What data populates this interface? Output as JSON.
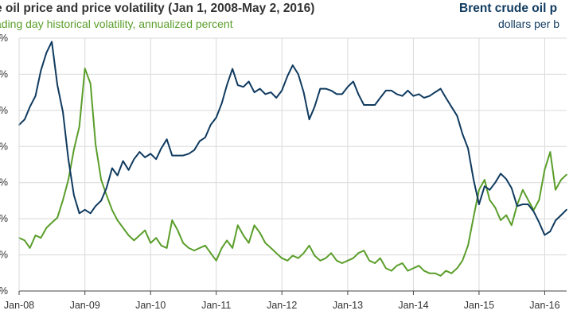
{
  "title": "e oil price and price volatility (Jan 1, 2008-May  2, 2016)",
  "subtitle_left": "ading  day historical volatility, annualized percent",
  "title_right": "Brent crude oil p",
  "subtitle_right": "dollars per b",
  "colors": {
    "volatility": "#5a9e2a",
    "brent": "#0f3a5f",
    "grid": "#d9d9d9",
    "axis": "#444444"
  },
  "chart_data": {
    "type": "line",
    "grid": true,
    "x_tick_labels": [
      "Jan-08",
      "Jan-09",
      "Jan-10",
      "Jan-11",
      "Jan-12",
      "Jan-13",
      "Jan-14",
      "Jan-15",
      "Jan-16"
    ],
    "x_range": [
      "2008-01-01",
      "2016-05-02"
    ],
    "y_tick_labels": [
      "%",
      "%",
      "%",
      "%",
      "%",
      "%",
      "%",
      "%"
    ],
    "series": [
      {
        "name": "Brent crude oil price",
        "color": "#0f3a5f",
        "axis": "right",
        "y_range": [
          0,
          140
        ],
        "x": [
          "2008-01",
          "2008-02",
          "2008-03",
          "2008-04",
          "2008-05",
          "2008-06",
          "2008-07",
          "2008-08",
          "2008-09",
          "2008-10",
          "2008-11",
          "2008-12",
          "2009-01",
          "2009-02",
          "2009-03",
          "2009-04",
          "2009-05",
          "2009-06",
          "2009-07",
          "2009-08",
          "2009-09",
          "2009-10",
          "2009-11",
          "2009-12",
          "2010-01",
          "2010-02",
          "2010-03",
          "2010-04",
          "2010-05",
          "2010-06",
          "2010-07",
          "2010-08",
          "2010-09",
          "2010-10",
          "2010-11",
          "2010-12",
          "2011-01",
          "2011-02",
          "2011-03",
          "2011-04",
          "2011-05",
          "2011-06",
          "2011-07",
          "2011-08",
          "2011-09",
          "2011-10",
          "2011-11",
          "2011-12",
          "2012-01",
          "2012-02",
          "2012-03",
          "2012-04",
          "2012-05",
          "2012-06",
          "2012-07",
          "2012-08",
          "2012-09",
          "2012-10",
          "2012-11",
          "2012-12",
          "2013-01",
          "2013-02",
          "2013-03",
          "2013-04",
          "2013-05",
          "2013-06",
          "2013-07",
          "2013-08",
          "2013-09",
          "2013-10",
          "2013-11",
          "2013-12",
          "2014-01",
          "2014-02",
          "2014-03",
          "2014-04",
          "2014-05",
          "2014-06",
          "2014-07",
          "2014-08",
          "2014-09",
          "2014-10",
          "2014-11",
          "2014-12",
          "2015-01",
          "2015-02",
          "2015-03",
          "2015-04",
          "2015-05",
          "2015-06",
          "2015-07",
          "2015-08",
          "2015-09",
          "2015-10",
          "2015-11",
          "2015-12",
          "2016-01",
          "2016-02",
          "2016-03",
          "2016-04",
          "2016-05"
        ],
        "values": [
          92,
          95,
          102,
          108,
          122,
          132,
          138,
          114,
          99,
          73,
          53,
          43,
          45,
          43,
          47,
          50,
          57,
          68,
          64,
          72,
          67,
          73,
          77,
          74,
          76,
          73,
          79,
          84,
          75,
          75,
          75,
          76,
          78,
          83,
          85,
          92,
          96,
          104,
          114,
          123,
          114,
          113,
          116,
          110,
          112,
          109,
          110,
          107,
          111,
          119,
          125,
          120,
          110,
          95,
          102,
          112,
          112,
          111,
          109,
          109,
          113,
          116,
          109,
          103,
          103,
          103,
          107,
          111,
          111,
          109,
          108,
          111,
          108,
          109,
          107,
          108,
          110,
          112,
          107,
          102,
          97,
          87,
          79,
          62,
          48,
          58,
          56,
          60,
          65,
          62,
          57,
          47,
          48,
          48,
          44,
          38,
          31,
          33,
          39,
          42,
          45
        ]
      },
      {
        "name": "historical volatility",
        "color": "#5a9e2a",
        "axis": "left",
        "y_range": [
          0,
          100
        ],
        "x": [
          "2008-01",
          "2008-02",
          "2008-03",
          "2008-04",
          "2008-05",
          "2008-06",
          "2008-07",
          "2008-08",
          "2008-09",
          "2008-10",
          "2008-11",
          "2008-12",
          "2009-01",
          "2009-02",
          "2009-03",
          "2009-04",
          "2009-05",
          "2009-06",
          "2009-07",
          "2009-08",
          "2009-09",
          "2009-10",
          "2009-11",
          "2009-12",
          "2010-01",
          "2010-02",
          "2010-03",
          "2010-04",
          "2010-05",
          "2010-06",
          "2010-07",
          "2010-08",
          "2010-09",
          "2010-10",
          "2010-11",
          "2010-12",
          "2011-01",
          "2011-02",
          "2011-03",
          "2011-04",
          "2011-05",
          "2011-06",
          "2011-07",
          "2011-08",
          "2011-09",
          "2011-10",
          "2011-11",
          "2011-12",
          "2012-01",
          "2012-02",
          "2012-03",
          "2012-04",
          "2012-05",
          "2012-06",
          "2012-07",
          "2012-08",
          "2012-09",
          "2012-10",
          "2012-11",
          "2012-12",
          "2013-01",
          "2013-02",
          "2013-03",
          "2013-04",
          "2013-05",
          "2013-06",
          "2013-07",
          "2013-08",
          "2013-09",
          "2013-10",
          "2013-11",
          "2013-12",
          "2014-01",
          "2014-02",
          "2014-03",
          "2014-04",
          "2014-05",
          "2014-06",
          "2014-07",
          "2014-08",
          "2014-09",
          "2014-10",
          "2014-11",
          "2014-12",
          "2015-01",
          "2015-02",
          "2015-03",
          "2015-04",
          "2015-05",
          "2015-06",
          "2015-07",
          "2015-08",
          "2015-09",
          "2015-10",
          "2015-11",
          "2015-12",
          "2016-01",
          "2016-02",
          "2016-03",
          "2016-04",
          "2016-05"
        ],
        "values": [
          21,
          20,
          17,
          22,
          21,
          25,
          27,
          29,
          36,
          44,
          56,
          65,
          88,
          82,
          58,
          44,
          38,
          32,
          28,
          25,
          22,
          20,
          22,
          24,
          19,
          21,
          18,
          17,
          28,
          24,
          19,
          17,
          16,
          17,
          18,
          15,
          12,
          17,
          20,
          17,
          26,
          22,
          19,
          26,
          23,
          19,
          17,
          15,
          13,
          12,
          14,
          13,
          15,
          18,
          14,
          12,
          13,
          15,
          12,
          11,
          12,
          13,
          15,
          16,
          12,
          11,
          13,
          9,
          8,
          10,
          11,
          8,
          9,
          10,
          8,
          7,
          7,
          6,
          8,
          7,
          9,
          12,
          18,
          29,
          40,
          44,
          36,
          33,
          28,
          30,
          26,
          34,
          40,
          36,
          32,
          36,
          48,
          55,
          40,
          44,
          46
        ]
      }
    ]
  }
}
